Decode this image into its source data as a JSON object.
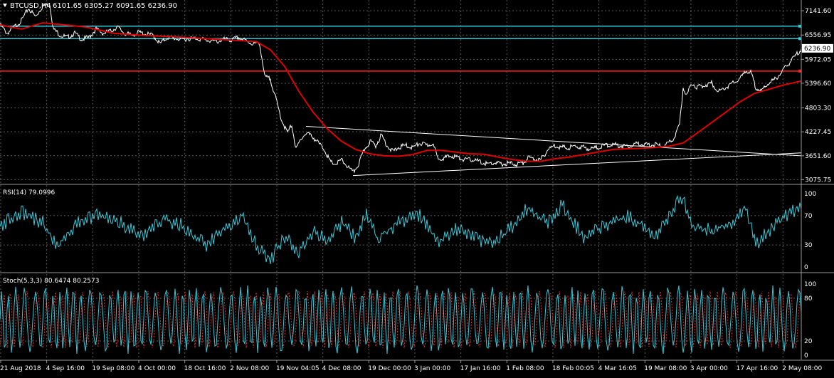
{
  "header": {
    "symbol_label": "BTCUSD,H4",
    "ohlc_label": "6101.65 6305.27 6091.65 6236.90"
  },
  "colors": {
    "background": "#000000",
    "grid": "#5a5a5a",
    "price_line": "#ffffff",
    "ma_line": "#e00000",
    "horizontal_cyan": "#37c8d8",
    "horizontal_red": "#ff2020",
    "rsi_line": "#37c8d8",
    "stoch_main": "#37c8d8",
    "stoch_signal": "#e03030",
    "axis_text": "#ffffff",
    "current_price_box_bg": "#ffffff",
    "current_price_box_text": "#000000"
  },
  "chart_data": [
    {
      "type": "line",
      "panel": "price",
      "title": "BTCUSD,H4",
      "ohlc": {
        "open": 6101.65,
        "high": 6305.27,
        "low": 6091.65,
        "close": 6236.9
      },
      "y_ticks": [
        7141.6,
        6556.95,
        6236.9,
        5972.05,
        5396.6,
        4803.3,
        4227.45,
        3651.6,
        3075.75
      ],
      "current_price": 6236.9,
      "ylim": [
        2980,
        7400
      ],
      "x_ticks": [
        "21 Aug 2018",
        "4 Sep 16:00",
        "19 Sep 08:00",
        "4 Oct 00:00",
        "18 Oct 16:00",
        "2 Nov 08:00",
        "19 Nov 04:05",
        "4 Dec 08:00",
        "19 Dec 00:00",
        "3 Jan 00:00",
        "17 Jan 16:00",
        "1 Feb 08:00",
        "18 Feb 00:05",
        "4 Mar 16:05",
        "19 Mar 08:00",
        "3 Apr 00:00",
        "17 Apr 16:00",
        "2 May 08:00"
      ],
      "price_series": [
        [
          0,
          6800
        ],
        [
          10,
          6600
        ],
        [
          20,
          6750
        ],
        [
          30,
          6900
        ],
        [
          40,
          7200
        ],
        [
          50,
          7000
        ],
        [
          60,
          7250
        ],
        [
          70,
          7300
        ],
        [
          75,
          6700
        ],
        [
          85,
          6550
        ],
        [
          95,
          6500
        ],
        [
          105,
          6600
        ],
        [
          115,
          6450
        ],
        [
          125,
          6500
        ],
        [
          135,
          6700
        ],
        [
          145,
          6600
        ],
        [
          155,
          6650
        ],
        [
          165,
          6750
        ],
        [
          175,
          6600
        ],
        [
          185,
          6550
        ],
        [
          195,
          6620
        ],
        [
          205,
          6580
        ],
        [
          215,
          6550
        ],
        [
          225,
          6350
        ],
        [
          235,
          6500
        ],
        [
          245,
          6480
        ],
        [
          255,
          6450
        ],
        [
          265,
          6470
        ],
        [
          275,
          6480
        ],
        [
          285,
          6450
        ],
        [
          295,
          6420
        ],
        [
          305,
          6400
        ],
        [
          315,
          6450
        ],
        [
          325,
          6430
        ],
        [
          335,
          6500
        ],
        [
          345,
          6420
        ],
        [
          355,
          6350
        ],
        [
          365,
          6350
        ],
        [
          372,
          5550
        ],
        [
          380,
          5500
        ],
        [
          388,
          5000
        ],
        [
          396,
          4500
        ],
        [
          404,
          4200
        ],
        [
          410,
          4400
        ],
        [
          416,
          3800
        ],
        [
          424,
          4100
        ],
        [
          432,
          4200
        ],
        [
          440,
          4100
        ],
        [
          448,
          3950
        ],
        [
          456,
          3800
        ],
        [
          464,
          3500
        ],
        [
          472,
          3450
        ],
        [
          480,
          3550
        ],
        [
          488,
          3400
        ],
        [
          496,
          3250
        ],
        [
          504,
          3450
        ],
        [
          512,
          3800
        ],
        [
          520,
          4000
        ],
        [
          528,
          3900
        ],
        [
          536,
          4150
        ],
        [
          544,
          3900
        ],
        [
          552,
          3750
        ],
        [
          560,
          3850
        ],
        [
          570,
          3900
        ],
        [
          580,
          3850
        ],
        [
          590,
          3950
        ],
        [
          600,
          3900
        ],
        [
          608,
          3950
        ],
        [
          615,
          3600
        ],
        [
          625,
          3600
        ],
        [
          635,
          3650
        ],
        [
          645,
          3600
        ],
        [
          655,
          3550
        ],
        [
          665,
          3560
        ],
        [
          675,
          3500
        ],
        [
          685,
          3450
        ],
        [
          695,
          3480
        ],
        [
          705,
          3450
        ],
        [
          715,
          3470
        ],
        [
          725,
          3450
        ],
        [
          735,
          3480
        ],
        [
          742,
          3600
        ],
        [
          750,
          3580
        ],
        [
          760,
          3550
        ],
        [
          770,
          3800
        ],
        [
          780,
          3900
        ],
        [
          790,
          3850
        ],
        [
          800,
          3850
        ],
        [
          810,
          3880
        ],
        [
          820,
          3850
        ],
        [
          830,
          3820
        ],
        [
          840,
          3850
        ],
        [
          850,
          3900
        ],
        [
          860,
          3920
        ],
        [
          870,
          3900
        ],
        [
          880,
          3880
        ],
        [
          890,
          3920
        ],
        [
          900,
          3950
        ],
        [
          910,
          3900
        ],
        [
          920,
          3920
        ],
        [
          930,
          3880
        ],
        [
          940,
          3950
        ],
        [
          948,
          4100
        ],
        [
          955,
          4400
        ],
        [
          960,
          5300
        ],
        [
          965,
          5100
        ],
        [
          972,
          5400
        ],
        [
          980,
          5300
        ],
        [
          990,
          5350
        ],
        [
          1000,
          5400
        ],
        [
          1010,
          5200
        ],
        [
          1020,
          5300
        ],
        [
          1030,
          5400
        ],
        [
          1040,
          5500
        ],
        [
          1048,
          5700
        ],
        [
          1055,
          5650
        ],
        [
          1062,
          5300
        ],
        [
          1070,
          5200
        ],
        [
          1080,
          5400
        ],
        [
          1090,
          5500
        ],
        [
          1100,
          5700
        ],
        [
          1110,
          5900
        ],
        [
          1120,
          6100
        ],
        [
          1126,
          6237
        ]
      ],
      "ma_series": [
        [
          0,
          6800
        ],
        [
          30,
          6700
        ],
        [
          60,
          6850
        ],
        [
          80,
          6820
        ],
        [
          120,
          6750
        ],
        [
          160,
          6600
        ],
        [
          200,
          6550
        ],
        [
          240,
          6520
        ],
        [
          280,
          6480
        ],
        [
          320,
          6440
        ],
        [
          360,
          6400
        ],
        [
          380,
          6200
        ],
        [
          400,
          5800
        ],
        [
          420,
          5200
        ],
        [
          440,
          4700
        ],
        [
          460,
          4300
        ],
        [
          480,
          4000
        ],
        [
          500,
          3800
        ],
        [
          520,
          3700
        ],
        [
          540,
          3650
        ],
        [
          560,
          3640
        ],
        [
          580,
          3680
        ],
        [
          600,
          3780
        ],
        [
          620,
          3780
        ],
        [
          640,
          3740
        ],
        [
          660,
          3700
        ],
        [
          680,
          3690
        ],
        [
          700,
          3620
        ],
        [
          720,
          3560
        ],
        [
          740,
          3520
        ],
        [
          760,
          3520
        ],
        [
          780,
          3580
        ],
        [
          800,
          3620
        ],
        [
          820,
          3680
        ],
        [
          840,
          3740
        ],
        [
          860,
          3800
        ],
        [
          880,
          3820
        ],
        [
          900,
          3830
        ],
        [
          920,
          3850
        ],
        [
          940,
          3880
        ],
        [
          960,
          3960
        ],
        [
          980,
          4200
        ],
        [
          1000,
          4450
        ],
        [
          1020,
          4700
        ],
        [
          1040,
          4950
        ],
        [
          1060,
          5150
        ],
        [
          1080,
          5250
        ],
        [
          1100,
          5350
        ],
        [
          1126,
          5450
        ]
      ],
      "horizontal_lines": [
        {
          "value": 6770,
          "color": "cyan"
        },
        {
          "value": 6470,
          "color": "cyan"
        },
        {
          "value": 5690,
          "color": "red"
        }
      ],
      "triangle_lines": [
        {
          "from": [
            430,
            4360
          ],
          "to": [
            1126,
            3650
          ]
        },
        {
          "from": [
            496,
            3175
          ],
          "to": [
            1126,
            3720
          ]
        }
      ]
    },
    {
      "type": "line",
      "panel": "indicator",
      "title": "RSI(14) 79.0996",
      "y_ticks": [
        100,
        70,
        30,
        0
      ],
      "ylim": [
        0,
        100
      ],
      "levels": [
        70,
        30
      ],
      "key_points": [
        [
          0,
          55
        ],
        [
          30,
          75
        ],
        [
          60,
          60
        ],
        [
          80,
          28
        ],
        [
          110,
          60
        ],
        [
          140,
          72
        ],
        [
          170,
          60
        ],
        [
          200,
          40
        ],
        [
          230,
          65
        ],
        [
          260,
          55
        ],
        [
          290,
          30
        ],
        [
          320,
          55
        ],
        [
          340,
          72
        ],
        [
          360,
          30
        ],
        [
          380,
          10
        ],
        [
          400,
          40
        ],
        [
          420,
          20
        ],
        [
          440,
          50
        ],
        [
          460,
          35
        ],
        [
          480,
          60
        ],
        [
          500,
          40
        ],
        [
          515,
          75
        ],
        [
          530,
          40
        ],
        [
          560,
          60
        ],
        [
          590,
          70
        ],
        [
          615,
          35
        ],
        [
          640,
          50
        ],
        [
          660,
          45
        ],
        [
          690,
          30
        ],
        [
          720,
          55
        ],
        [
          740,
          80
        ],
        [
          770,
          60
        ],
        [
          790,
          85
        ],
        [
          820,
          40
        ],
        [
          850,
          55
        ],
        [
          880,
          70
        ],
        [
          900,
          60
        ],
        [
          920,
          40
        ],
        [
          940,
          70
        ],
        [
          958,
          95
        ],
        [
          975,
          55
        ],
        [
          1000,
          50
        ],
        [
          1030,
          60
        ],
        [
          1048,
          80
        ],
        [
          1062,
          30
        ],
        [
          1090,
          60
        ],
        [
          1110,
          75
        ],
        [
          1126,
          79
        ]
      ],
      "value": 79.0996
    },
    {
      "type": "line",
      "panel": "indicator",
      "title": "Stoch(5,3,3) 80.6474 80.2573",
      "y_ticks": [
        100,
        80,
        20,
        0
      ],
      "ylim": [
        0,
        100
      ],
      "levels": [
        80,
        20
      ],
      "series": [
        {
          "color": "cyan"
        },
        {
          "color": "red"
        }
      ],
      "values": [
        80.6474,
        80.2573
      ]
    }
  ]
}
